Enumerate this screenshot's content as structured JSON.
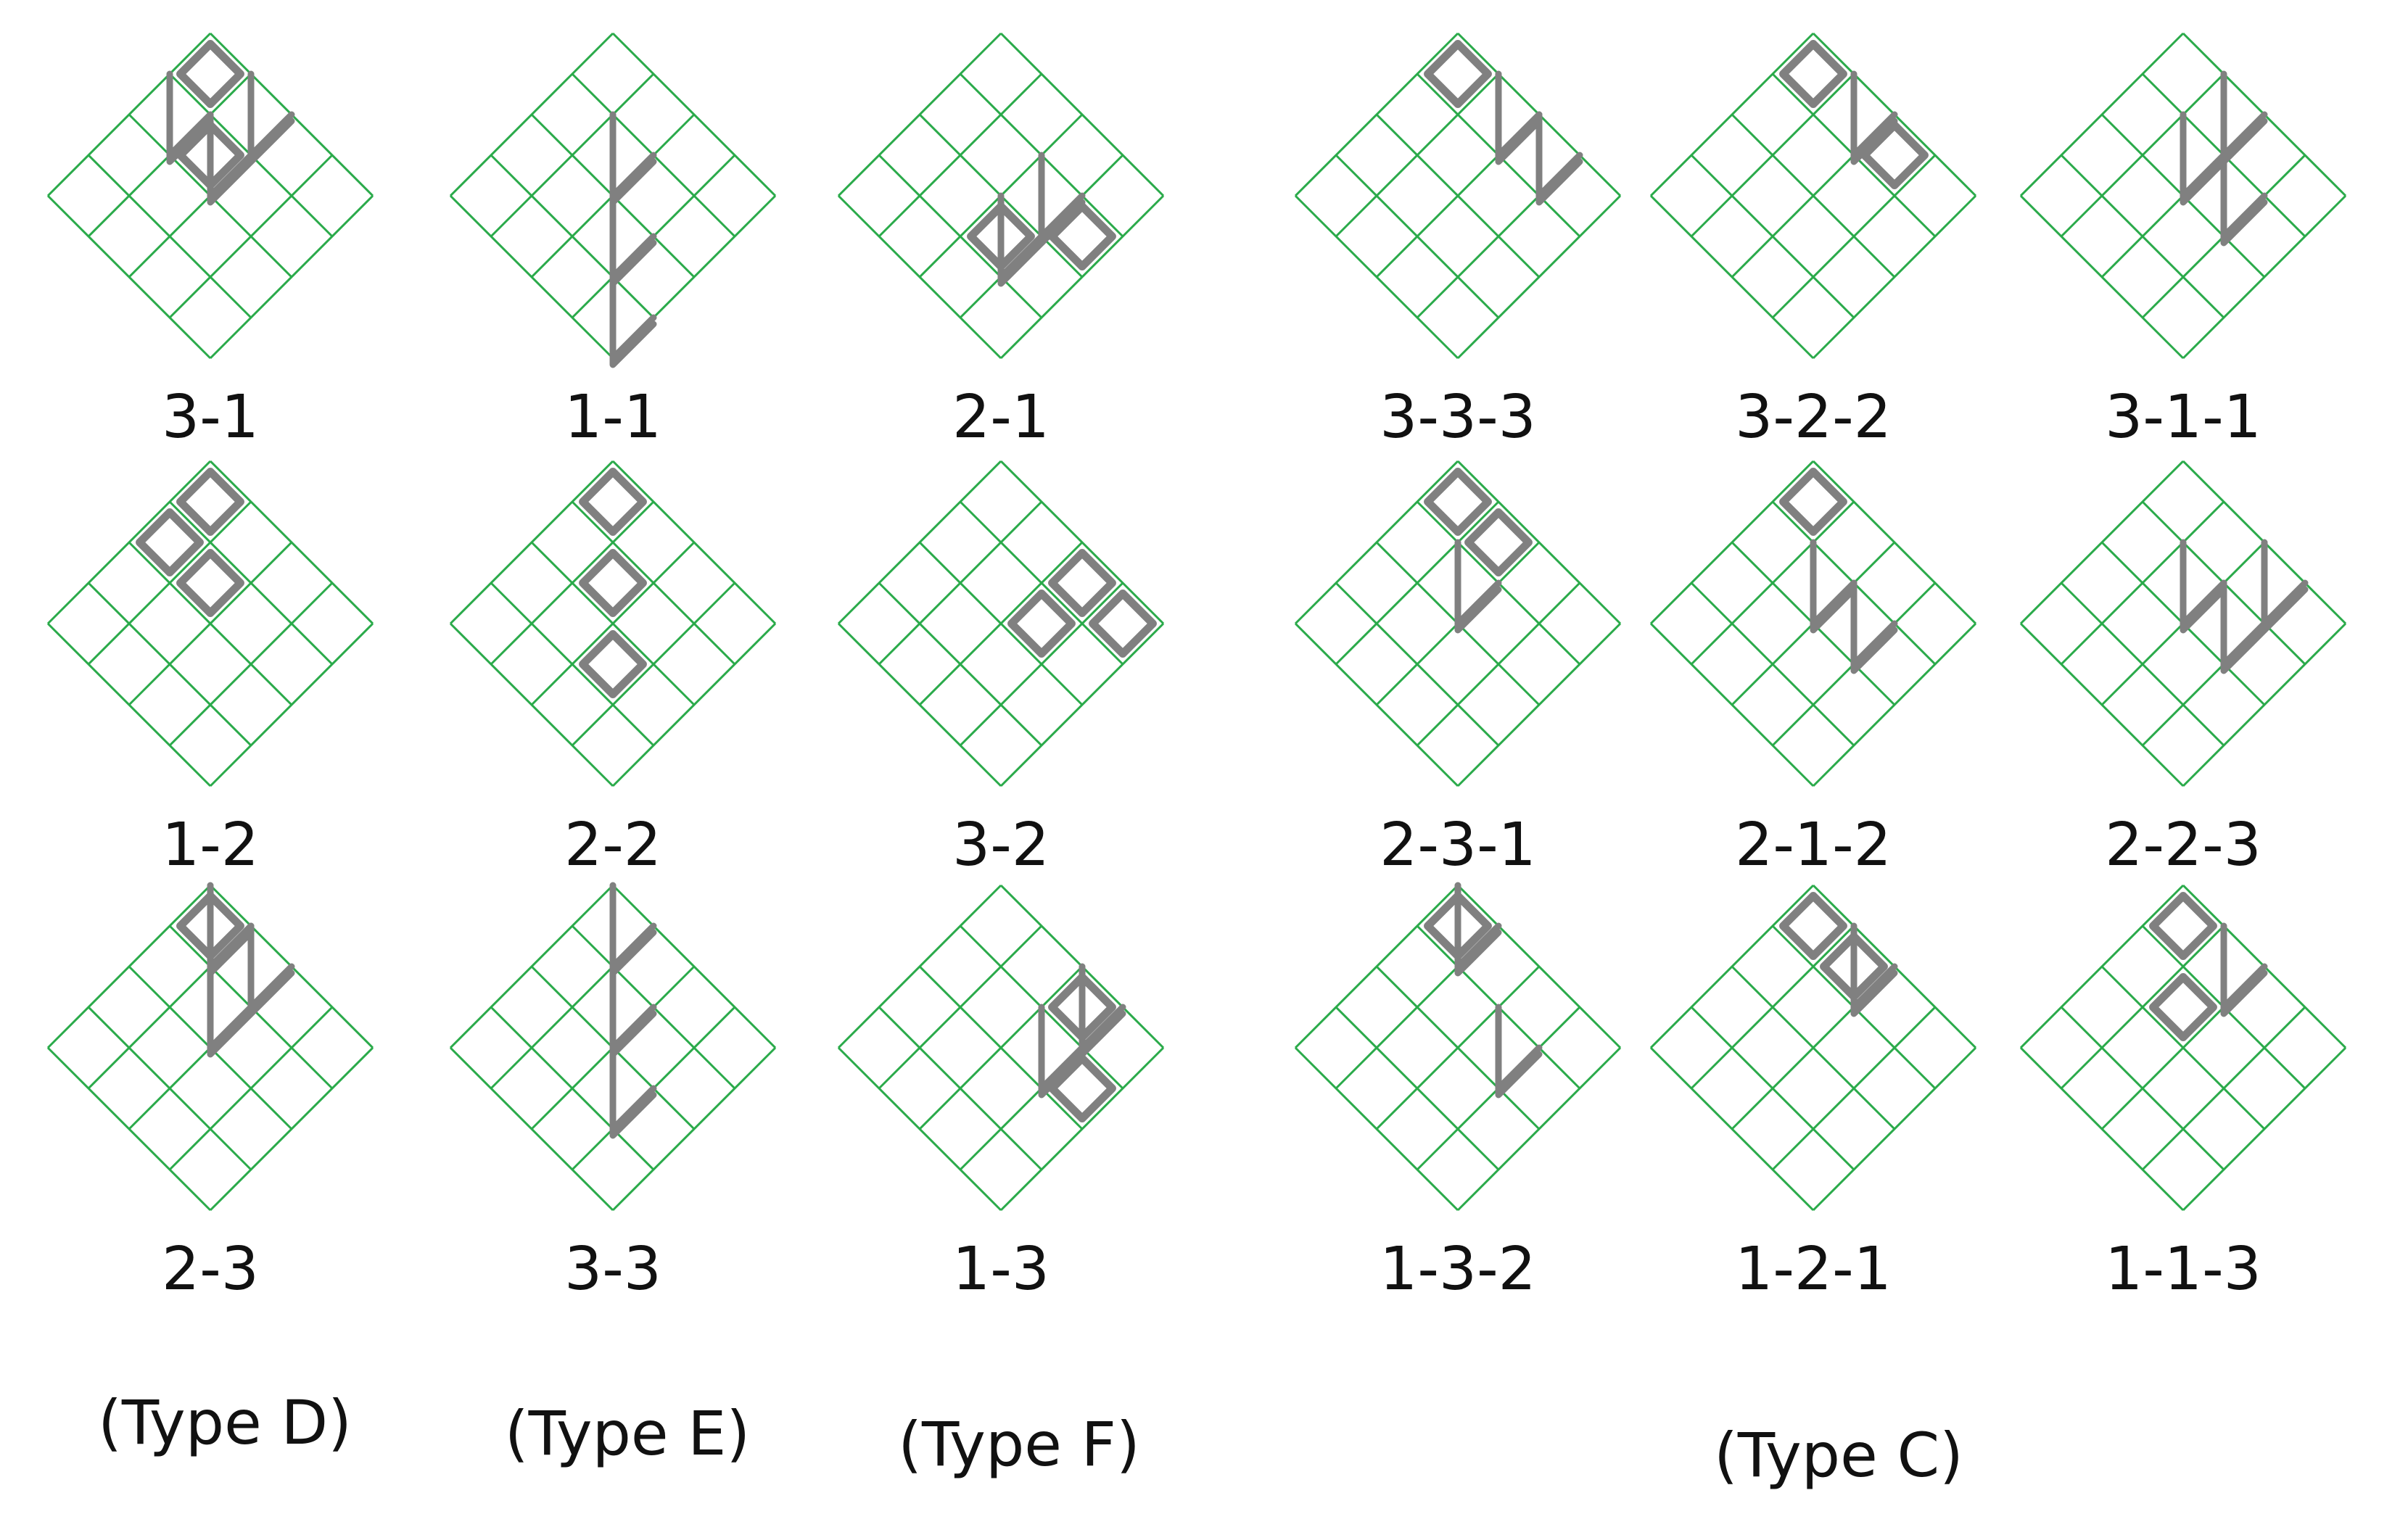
{
  "colors": {
    "grid": "#2aaa4a",
    "marker": "#808080",
    "text": "#111111"
  },
  "panels": [
    {
      "label": "3-1",
      "group": "D",
      "marks": [
        [
          "v",
          1,
          0
        ],
        [
          "v",
          0,
          1
        ],
        [
          "v",
          1,
          1
        ],
        [
          "sq",
          0,
          0
        ],
        [
          "sq",
          1,
          1
        ]
      ]
    },
    {
      "label": "1-1",
      "group": "E",
      "marks": [
        [
          "v",
          1,
          1
        ],
        [
          "v",
          2,
          2
        ],
        [
          "v",
          3,
          3
        ]
      ]
    },
    {
      "label": "2-1",
      "group": "F",
      "marks": [
        [
          "v",
          1,
          2
        ],
        [
          "v",
          2,
          2
        ],
        [
          "sq",
          1,
          3
        ],
        [
          "sq",
          2,
          2
        ]
      ]
    },
    {
      "label": "3-3-3",
      "group": "C",
      "marks": [
        [
          "v",
          0,
          1
        ],
        [
          "v",
          0,
          2
        ],
        [
          "sq",
          0,
          0
        ]
      ]
    },
    {
      "label": "3-2-2",
      "group": "C",
      "marks": [
        [
          "v",
          0,
          1
        ],
        [
          "sq",
          0,
          0
        ],
        [
          "sq",
          0,
          2
        ]
      ]
    },
    {
      "label": "3-1-1",
      "group": "C",
      "marks": [
        [
          "v",
          0,
          1
        ],
        [
          "v",
          1,
          1
        ],
        [
          "v",
          1,
          2
        ]
      ]
    },
    {
      "label": "1-2",
      "group": "D",
      "marks": [
        [
          "sq",
          0,
          0
        ],
        [
          "sq",
          1,
          0
        ],
        [
          "sq",
          1,
          1
        ]
      ]
    },
    {
      "label": "2-2",
      "group": "E",
      "marks": [
        [
          "sq",
          0,
          0
        ],
        [
          "sq",
          1,
          1
        ],
        [
          "sq",
          2,
          2
        ]
      ]
    },
    {
      "label": "3-2",
      "group": "F",
      "marks": [
        [
          "sq",
          0,
          2
        ],
        [
          "sq",
          1,
          2
        ],
        [
          "sq",
          0,
          3
        ]
      ]
    },
    {
      "label": "2-3-1",
      "group": "C",
      "marks": [
        [
          "v",
          1,
          1
        ],
        [
          "sq",
          0,
          0
        ],
        [
          "sq",
          0,
          1
        ]
      ]
    },
    {
      "label": "2-1-2",
      "group": "C",
      "marks": [
        [
          "v",
          1,
          1
        ],
        [
          "v",
          1,
          2
        ],
        [
          "sq",
          0,
          0
        ]
      ]
    },
    {
      "label": "2-2-3",
      "group": "C",
      "marks": [
        [
          "v",
          1,
          1
        ],
        [
          "v",
          1,
          2
        ],
        [
          "v",
          0,
          2
        ]
      ]
    },
    {
      "label": "2-3",
      "group": "D",
      "marks": [
        [
          "v",
          0,
          0
        ],
        [
          "v",
          0,
          1
        ],
        [
          "v",
          1,
          1
        ],
        [
          "sq",
          0,
          0
        ]
      ]
    },
    {
      "label": "3-3",
      "group": "E",
      "marks": [
        [
          "v",
          0,
          0
        ],
        [
          "v",
          1,
          1
        ],
        [
          "v",
          2,
          2
        ]
      ]
    },
    {
      "label": "1-3",
      "group": "F",
      "marks": [
        [
          "v",
          0,
          2
        ],
        [
          "v",
          1,
          2
        ],
        [
          "sq",
          0,
          2
        ],
        [
          "sq",
          1,
          3
        ]
      ]
    },
    {
      "label": "1-3-2",
      "group": "C",
      "marks": [
        [
          "v",
          0,
          0
        ],
        [
          "v",
          1,
          2
        ],
        [
          "sq",
          0,
          0
        ]
      ]
    },
    {
      "label": "1-2-1",
      "group": "C",
      "marks": [
        [
          "v",
          0,
          1
        ],
        [
          "sq",
          0,
          0
        ],
        [
          "sq",
          0,
          1
        ]
      ]
    },
    {
      "label": "1-1-3",
      "group": "C",
      "marks": [
        [
          "v",
          0,
          1
        ],
        [
          "sq",
          0,
          0
        ],
        [
          "sq",
          1,
          1
        ]
      ]
    }
  ],
  "type_labels": [
    "(Type D)",
    "(Type E)",
    "(Type F)",
    "(Type C)"
  ]
}
